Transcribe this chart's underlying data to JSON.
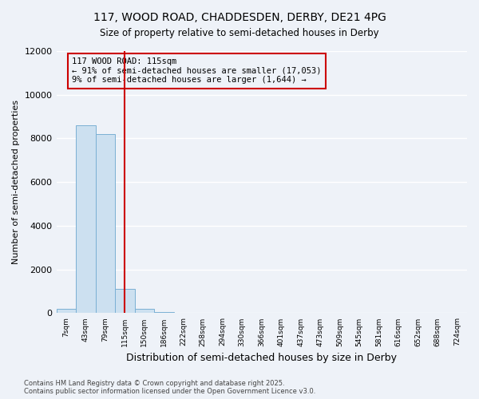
{
  "title_line1": "117, WOOD ROAD, CHADDESDEN, DERBY, DE21 4PG",
  "title_line2": "Size of property relative to semi-detached houses in Derby",
  "xlabel": "Distribution of semi-detached houses by size in Derby",
  "ylabel": "Number of semi-detached properties",
  "bin_labels": [
    "7sqm",
    "43sqm",
    "79sqm",
    "115sqm",
    "150sqm",
    "186sqm",
    "222sqm",
    "258sqm",
    "294sqm",
    "330sqm",
    "366sqm",
    "401sqm",
    "437sqm",
    "473sqm",
    "509sqm",
    "545sqm",
    "581sqm",
    "616sqm",
    "652sqm",
    "688sqm",
    "724sqm"
  ],
  "bar_values": [
    200,
    8600,
    8200,
    1100,
    200,
    50,
    0,
    0,
    0,
    0,
    0,
    0,
    0,
    0,
    0,
    0,
    0,
    0,
    0,
    0,
    0
  ],
  "bar_color": "#cce0f0",
  "bar_edge_color": "#7ab0d4",
  "vline_x": 3,
  "vline_color": "#cc0000",
  "ylim": [
    0,
    12000
  ],
  "yticks": [
    0,
    2000,
    4000,
    6000,
    8000,
    10000,
    12000
  ],
  "annotation_title": "117 WOOD ROAD: 115sqm",
  "annotation_line1": "← 91% of semi-detached houses are smaller (17,053)",
  "annotation_line2": "9% of semi-detached houses are larger (1,644) →",
  "annotation_box_color": "#cc0000",
  "footer_line1": "Contains HM Land Registry data © Crown copyright and database right 2025.",
  "footer_line2": "Contains public sector information licensed under the Open Government Licence v3.0.",
  "background_color": "#eef2f8",
  "grid_color": "#ffffff"
}
